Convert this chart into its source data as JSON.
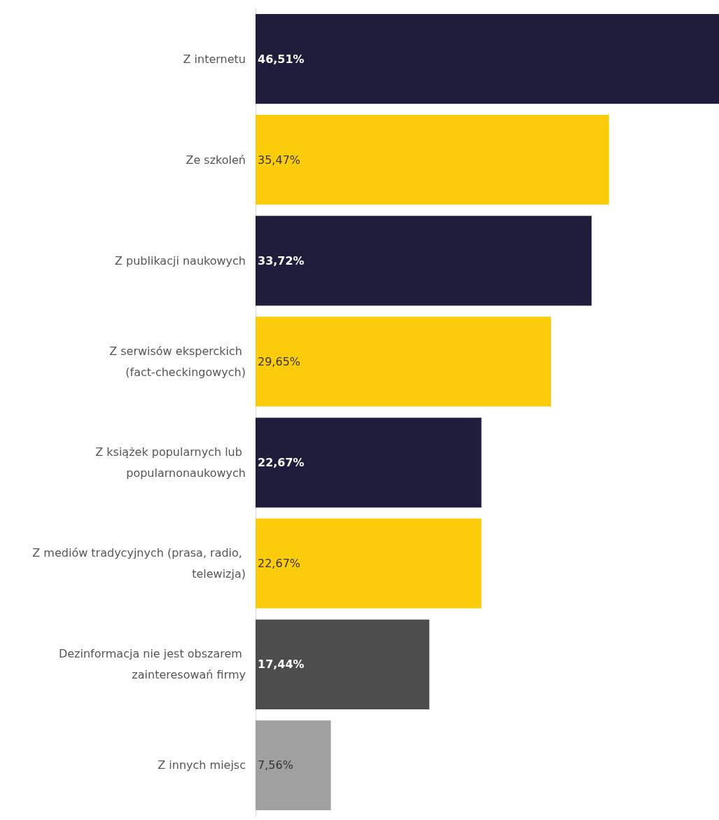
{
  "chart_data": {
    "type": "bar",
    "orientation": "horizontal",
    "categories": [
      "Z internetu",
      "Ze szkoleń",
      "Z publikacji naukowych",
      "Z serwisów eksperckich (fact-checkingowych)",
      "Z książek popularnych lub popularnonaukowych",
      "Z mediów tradycyjnych (prasa, radio, telewizja)",
      "Dezinformacja nie jest obszarem zainteresowań firmy",
      "Z innych miejsc"
    ],
    "values": [
      46.51,
      35.47,
      33.72,
      29.65,
      22.67,
      22.67,
      17.44,
      7.56
    ],
    "value_labels": [
      "46,51%",
      "35,47%",
      "33,72%",
      "29,65%",
      "22,67%",
      "22,67%",
      "17,44%",
      "7,56%"
    ],
    "colors": [
      "#1e1e3c",
      "#fccc0a",
      "#1e1e3c",
      "#fccc0a",
      "#1e1e3c",
      "#fccc0a",
      "#4d4d4d",
      "#a0a0a0"
    ]
  }
}
